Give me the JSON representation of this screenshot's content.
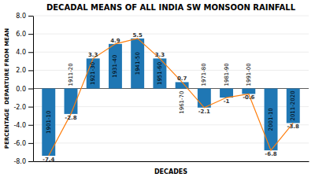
{
  "chart_data": {
    "type": "bar",
    "title": "DECADAL MEANS OF ALL INDIA SW MONSOON RAINFALL",
    "xlabel": "DECADES",
    "ylabel": "PERCENTAGE  DEPARTURE FROM MEAN",
    "categories": [
      "1901-10",
      "1911-20",
      "1921-30",
      "1931-40",
      "1941-50",
      "1951-60",
      "1961-70",
      "1971-80",
      "1981-90",
      "1991-00",
      "2001-10",
      "2011-2020"
    ],
    "values": [
      -7.4,
      -2.8,
      3.3,
      4.9,
      5.5,
      3.3,
      0.7,
      -2.1,
      -1.0,
      -0.6,
      -6.8,
      -3.8
    ],
    "ylim": [
      -8,
      8
    ],
    "yticks": [
      {
        "value": -8,
        "label": "-8.0"
      },
      {
        "value": -6,
        "label": "-6.0"
      },
      {
        "value": -4,
        "label": "-4.0"
      },
      {
        "value": -2,
        "label": "-2.0"
      },
      {
        "value": 0,
        "label": "0.0"
      },
      {
        "value": 2,
        "label": "2.0"
      },
      {
        "value": 4,
        "label": "4.0"
      },
      {
        "value": 6,
        "label": "6.0"
      },
      {
        "value": 8,
        "label": "8.0"
      }
    ],
    "grid": true,
    "data_labels": true
  }
}
